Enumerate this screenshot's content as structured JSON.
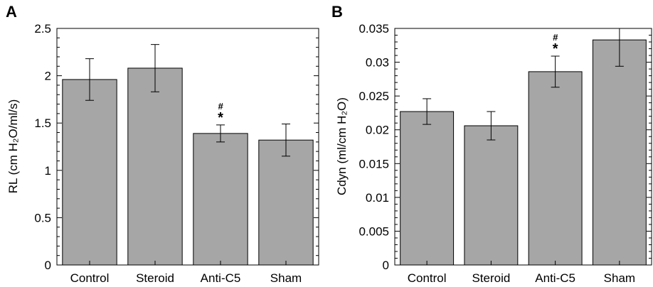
{
  "colors": {
    "bar_fill": "#a6a6a6",
    "bar_stroke": "#000000",
    "axis": "#000000"
  },
  "chart_data": [
    {
      "type": "bar",
      "panel": "A",
      "categories": [
        "Control",
        "Steroid",
        "Anti-C5",
        "Sham"
      ],
      "values": [
        1.96,
        2.08,
        1.39,
        1.32
      ],
      "error": [
        0.22,
        0.25,
        0.09,
        0.17
      ],
      "ylabel": "RL (cm H₂O/ml/s)",
      "ylim": [
        0,
        2.5
      ],
      "yticks": [
        "0",
        "0.5",
        "1",
        "1.5",
        "2",
        "2.5"
      ],
      "annotations": [
        {
          "category": "Anti-C5",
          "symbols": [
            "#",
            "*"
          ]
        }
      ],
      "grid": false,
      "legend": "none"
    },
    {
      "type": "bar",
      "panel": "B",
      "categories": [
        "Control",
        "Steroid",
        "Anti-C5",
        "Sham"
      ],
      "values": [
        0.0227,
        0.0206,
        0.0286,
        0.0333
      ],
      "error": [
        0.0019,
        0.0021,
        0.0023,
        0.0039
      ],
      "ylabel": "Cdyn (ml/cm H₂O)",
      "ylim": [
        0,
        0.035
      ],
      "yticks": [
        "0",
        "0.005",
        "0.01",
        "0.015",
        "0.02",
        "0.025",
        "0.03",
        "0.035"
      ],
      "annotations": [
        {
          "category": "Anti-C5",
          "symbols": [
            "#",
            "*"
          ]
        }
      ],
      "grid": false,
      "legend": "none"
    }
  ]
}
